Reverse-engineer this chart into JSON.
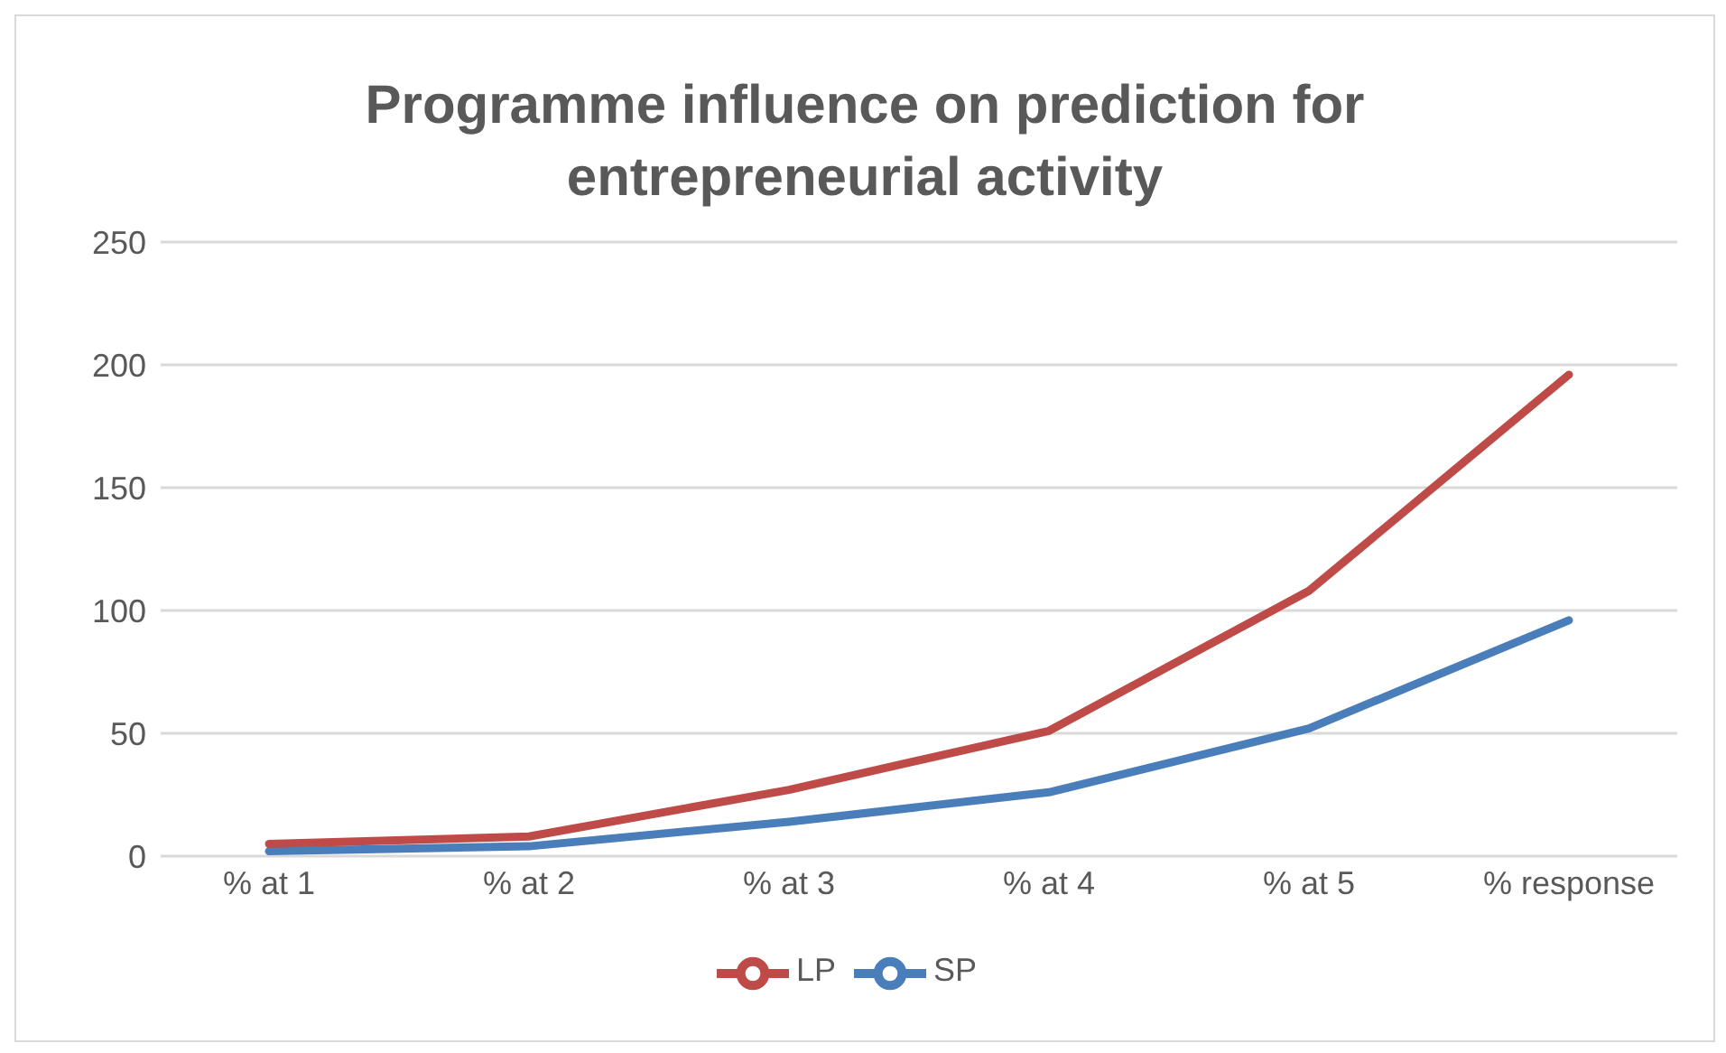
{
  "chart_data": {
    "type": "line",
    "title": "Programme influence on prediction for entrepreneurial activity",
    "categories": [
      "% at 1",
      "% at 2",
      "% at 3",
      "% at 4",
      "% at 5",
      "% response"
    ],
    "series": [
      {
        "name": "SP",
        "color": "#4a7ebb",
        "values": [
          2,
          4,
          14,
          26,
          52,
          96
        ]
      },
      {
        "name": "LP",
        "color": "#be4b48",
        "values": [
          5,
          8,
          27,
          51,
          108,
          196
        ]
      }
    ],
    "ylim": [
      0,
      250
    ],
    "yticks": [
      0,
      50,
      100,
      150,
      200,
      250
    ],
    "grid": "y",
    "legend": "bottom",
    "marker": "none",
    "line_style": "solid"
  }
}
